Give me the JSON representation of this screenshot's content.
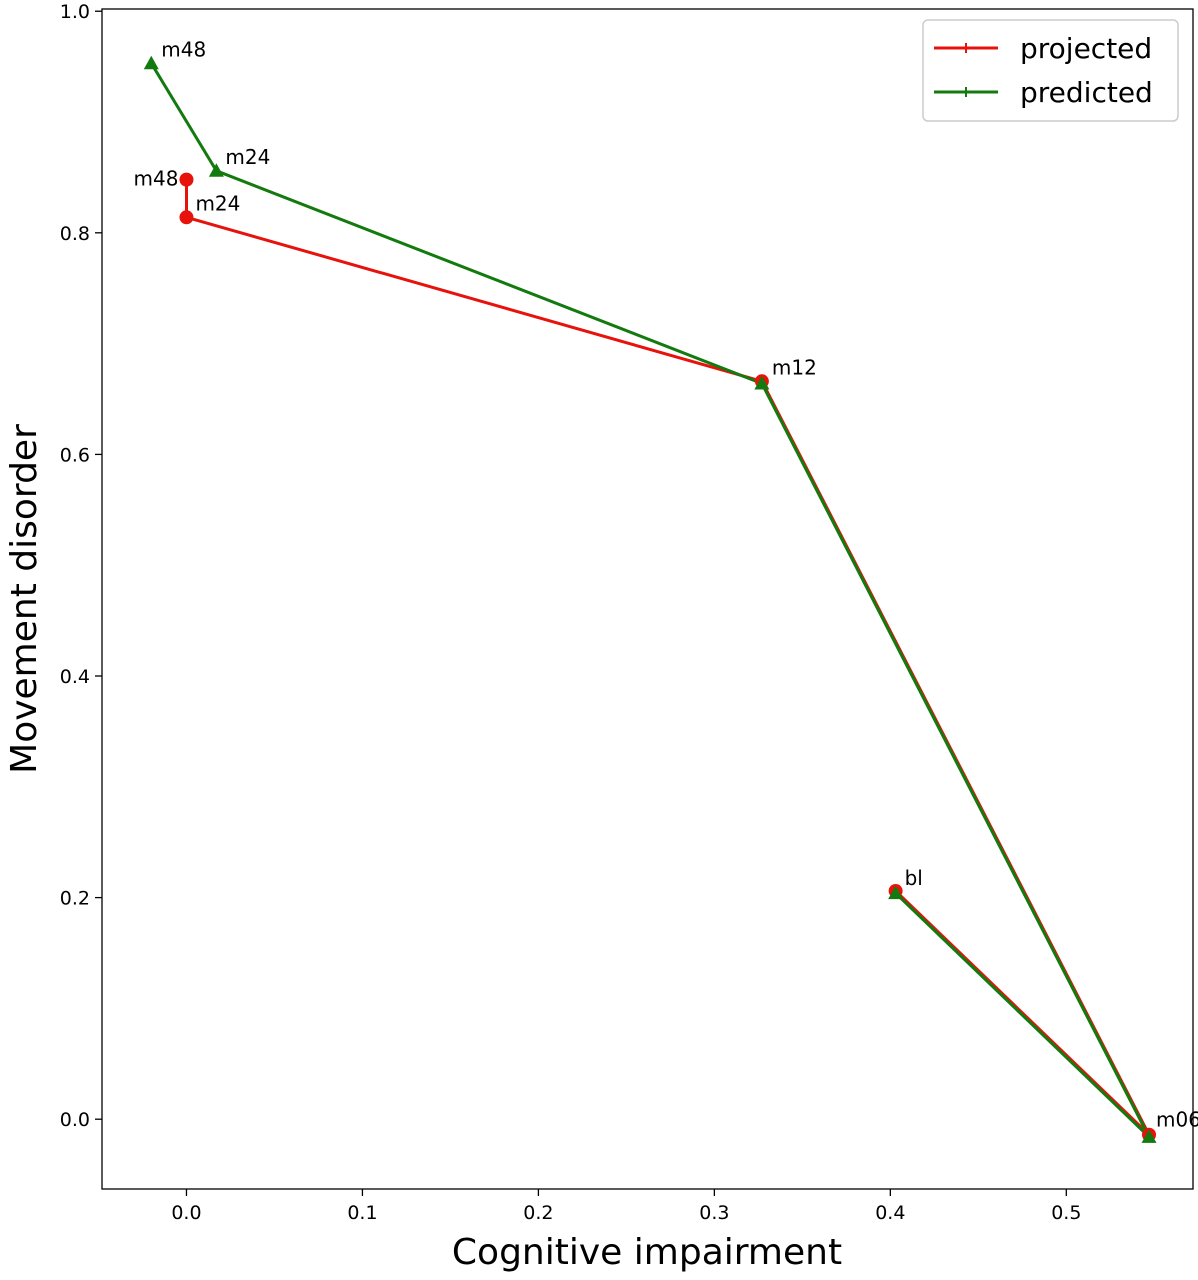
{
  "chart_data": {
    "type": "line",
    "title": "",
    "xlabel": "Cognitive impairment",
    "ylabel": "Movement disorder",
    "xlim": [
      -0.048,
      0.572
    ],
    "ylim": [
      -0.063,
      1.002
    ],
    "xticks": [
      0.0,
      0.1,
      0.2,
      0.3,
      0.4,
      0.5
    ],
    "xtick_labels": [
      "0.0",
      "0.1",
      "0.2",
      "0.3",
      "0.4",
      "0.5"
    ],
    "yticks": [
      0.0,
      0.2,
      0.4,
      0.6,
      0.8,
      1.0
    ],
    "ytick_labels": [
      "0.0",
      "0.2",
      "0.4",
      "0.6",
      "0.8",
      "1.0"
    ],
    "grid": false,
    "legend_position": "top-right",
    "series": [
      {
        "name": "projected",
        "color": "#e8120c",
        "marker": "circle",
        "points": [
          {
            "label": "bl",
            "x": 0.403,
            "y": 0.206
          },
          {
            "label": "m06",
            "x": 0.547,
            "y": -0.014
          },
          {
            "label": "m12",
            "x": 0.327,
            "y": 0.666
          },
          {
            "label": "m24",
            "x": 0.0,
            "y": 0.814
          },
          {
            "label": "m48",
            "x": 0.0,
            "y": 0.848
          }
        ]
      },
      {
        "name": "predicted",
        "color": "#137a0f",
        "marker": "triangle",
        "points": [
          {
            "label": "bl",
            "x": 0.403,
            "y": 0.204
          },
          {
            "label": "m06",
            "x": 0.547,
            "y": -0.016
          },
          {
            "label": "m12",
            "x": 0.327,
            "y": 0.664
          },
          {
            "label": "m24",
            "x": 0.017,
            "y": 0.856
          },
          {
            "label": "m48",
            "x": -0.02,
            "y": 0.953
          }
        ]
      }
    ]
  }
}
